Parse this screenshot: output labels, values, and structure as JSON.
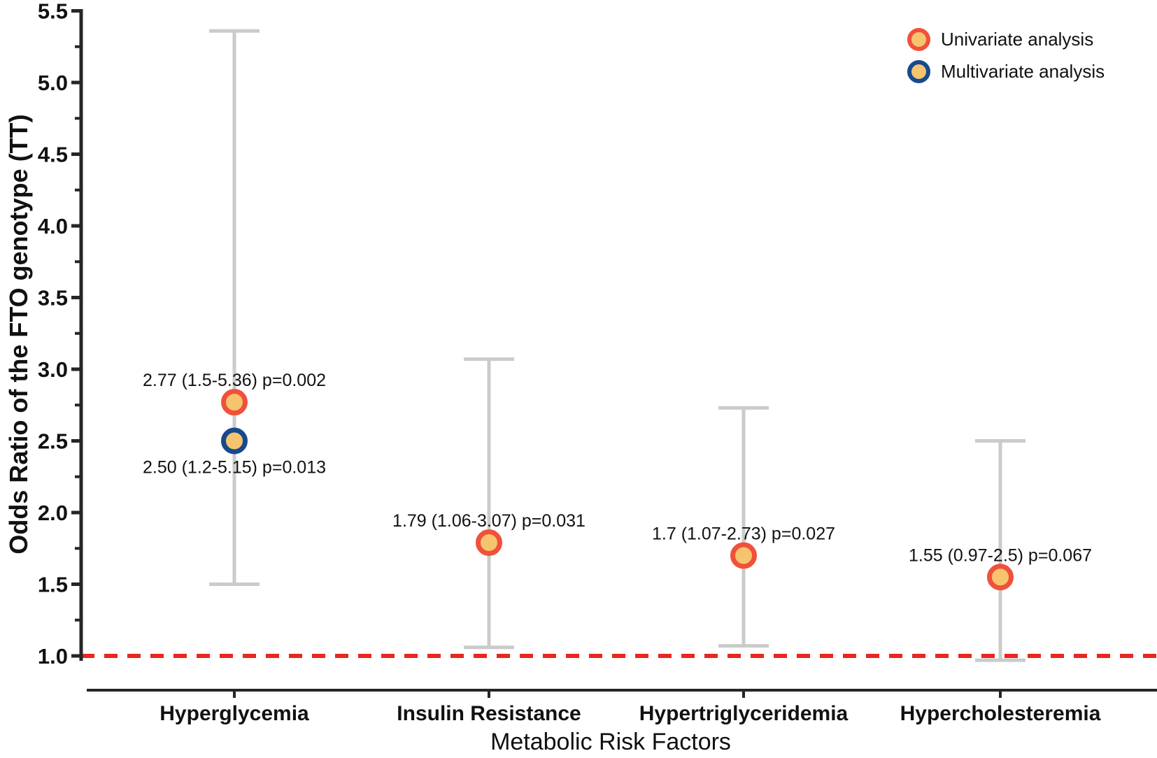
{
  "chart_data": {
    "type": "scatter",
    "subtype": "forest-plot",
    "title": "",
    "xlabel": "Metabolic Risk Factors",
    "ylabel": "Odds Ratio of the FTO genotype (TT)",
    "categories": [
      "Hyperglycemia",
      "Insulin Resistance",
      "Hypertriglyceridemia",
      "Hypercholesteremia"
    ],
    "yaxis": {
      "tick_labels": [
        "1.0",
        "1.5",
        "2.0",
        "2.5",
        "3.0",
        "3.5",
        "4.0",
        "4.5",
        "5.0",
        "5.5"
      ],
      "tick_values": [
        1.0,
        1.5,
        2.0,
        2.5,
        3.0,
        3.5,
        4.0,
        4.5,
        5.0,
        5.5
      ],
      "minor_tick_values": [
        1.25,
        1.75,
        2.25,
        2.75,
        3.25,
        3.75,
        4.25,
        4.75,
        5.25
      ],
      "range_shown": [
        1.0,
        5.5
      ]
    },
    "reference_line": {
      "value": 1.0,
      "style": "dashed",
      "color": "#e8271e"
    },
    "series": [
      {
        "name": "Univariate analysis",
        "marker_fill": "#f6c46e",
        "marker_ring": "#f0513b",
        "points": [
          {
            "category": "Hyperglycemia",
            "or": 2.77,
            "ci_low": 1.5,
            "ci_high": 5.36,
            "p_value": "p=0.002",
            "label": "2.77 (1.5-5.36) p=0.002",
            "label_side": "above",
            "show_ci": true
          },
          {
            "category": "Insulin Resistance",
            "or": 1.79,
            "ci_low": 1.06,
            "ci_high": 3.07,
            "p_value": "p=0.031",
            "label": "1.79 (1.06-3.07) p=0.031",
            "label_side": "above",
            "show_ci": true
          },
          {
            "category": "Hypertriglyceridemia",
            "or": 1.7,
            "ci_low": 1.07,
            "ci_high": 2.73,
            "p_value": "p=0.027",
            "label": "1.7 (1.07-2.73) p=0.027",
            "label_side": "above",
            "show_ci": true
          },
          {
            "category": "Hypercholesteremia",
            "or": 1.55,
            "ci_low": 0.97,
            "ci_high": 2.5,
            "p_value": "p=0.067",
            "label": "1.55 (0.97-2.5) p=0.067",
            "label_side": "above",
            "show_ci": true
          }
        ]
      },
      {
        "name": "Multivariate analysis",
        "marker_fill": "#f6c46e",
        "marker_ring": "#174a8c",
        "points": [
          {
            "category": "Hyperglycemia",
            "or": 2.5,
            "ci_low": 1.2,
            "ci_high": 5.15,
            "p_value": "p=0.013",
            "label": "2.50 (1.2-5.15) p=0.013",
            "label_side": "below",
            "show_ci": false
          }
        ]
      }
    ],
    "legend": {
      "position": "top-right",
      "entries": [
        {
          "label": "Univariate analysis",
          "ring": "#f0513b",
          "fill": "#f6c46e"
        },
        {
          "label": "Multivariate analysis",
          "ring": "#174a8c",
          "fill": "#f6c46e"
        }
      ]
    },
    "colors": {
      "error_bar": "#cbcbcb",
      "axis": "#262626",
      "text": "#111111",
      "background": "#ffffff"
    }
  }
}
